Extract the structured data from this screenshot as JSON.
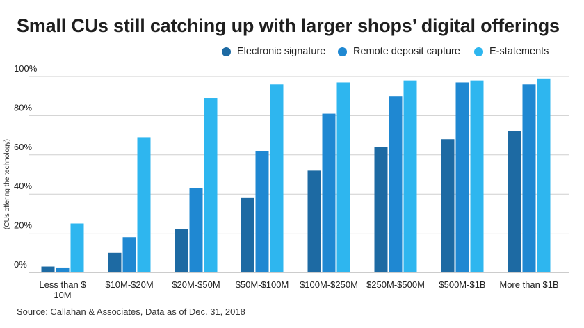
{
  "title": "Small CUs still catching up with larger shops’ digital offerings",
  "source": "Source: Callahan & Associates, Data as of Dec. 31, 2018",
  "chart_data": {
    "type": "bar",
    "title": "Small CUs still catching up with larger shops’ digital offerings",
    "xlabel": "",
    "ylabel": "(CUs offering the technology)",
    "ylim": [
      0,
      100
    ],
    "yticks": [
      0,
      20,
      40,
      60,
      80,
      100
    ],
    "ytick_labels": [
      "0%",
      "20%",
      "40%",
      "60%",
      "80%",
      "100%"
    ],
    "grid": true,
    "legend_position": "top-right",
    "categories": [
      [
        "Less than $",
        "10M"
      ],
      [
        "$10M-$20M"
      ],
      [
        "$20M-$50M"
      ],
      [
        "$50M-$100M"
      ],
      [
        "$100M-$250M"
      ],
      [
        "$250M-$500M"
      ],
      [
        "$500M-$1B"
      ],
      [
        "More than $1B"
      ]
    ],
    "series": [
      {
        "name": "Electronic signature",
        "color": "#1d6aa3",
        "values": [
          3,
          10,
          22,
          38,
          52,
          64,
          68,
          72
        ]
      },
      {
        "name": "Remote deposit capture",
        "color": "#1f88d2",
        "values": [
          2.5,
          18,
          43,
          62,
          81,
          90,
          97,
          96
        ]
      },
      {
        "name": "E-statements",
        "color": "#2eb6ef",
        "values": [
          25,
          69,
          89,
          96,
          97,
          98,
          98,
          99
        ]
      }
    ]
  }
}
